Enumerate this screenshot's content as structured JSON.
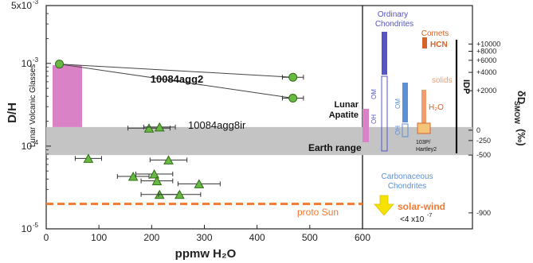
{
  "chart_data": {
    "type": "scatter",
    "xlabel": "ppmw H₂O",
    "ylabel": "D/H",
    "y2label": "δD",
    "y2label_sub": "SMOW",
    "y2label_unit": "(‰)",
    "xlim": [
      0,
      600
    ],
    "ylim": [
      1e-05,
      0.005
    ],
    "yscale": "log",
    "xticks": [
      "0",
      "100",
      "200",
      "300",
      "400",
      "500",
      "600"
    ],
    "yticks": [
      {
        "value": 1e-05,
        "label": "10",
        "exp": "-5"
      },
      {
        "value": 0.0001,
        "label": "10",
        "exp": "-4"
      },
      {
        "value": 0.001,
        "label": "10",
        "exp": "-3"
      },
      {
        "value": 0.005,
        "label": "5x10",
        "exp": "-3"
      }
    ],
    "delta_ticks": [
      {
        "value": 0.001713,
        "label": "+10000"
      },
      {
        "value": 0.001402,
        "label": "+8000"
      },
      {
        "value": 0.00109,
        "label": "+6000"
      },
      {
        "value": 0.000779,
        "label": "+4000"
      },
      {
        "value": 0.000467,
        "label": "+2000"
      },
      {
        "value": 0.0001558,
        "label": "0"
      },
      {
        "value": 0.0001168,
        "label": "-250"
      },
      {
        "value": 7.79e-05,
        "label": "-500"
      },
      {
        "value": 1.56e-05,
        "label": "-900"
      }
    ],
    "series": [
      {
        "name": "10084agg2",
        "marker": "circle",
        "color": "#6ab844",
        "points": [
          {
            "x": 25,
            "y": 0.00098
          },
          {
            "x": 468,
            "y": 0.00068,
            "xerr": 20
          },
          {
            "x": 468,
            "y": 0.00038,
            "xerr": 20
          }
        ]
      },
      {
        "name": "10084agg8ir",
        "marker": "triangle",
        "color": "#6ab844",
        "points": [
          {
            "x": 195,
            "y": 0.000165,
            "xerr": 40
          },
          {
            "x": 215,
            "y": 0.00017,
            "xerr": 30
          },
          {
            "x": 80,
            "y": 7.1e-05,
            "xerr": 25
          },
          {
            "x": 232,
            "y": 6.8e-05,
            "xerr": 35
          },
          {
            "x": 165,
            "y": 4.3e-05,
            "xerr": 30
          },
          {
            "x": 205,
            "y": 4.6e-05,
            "xerr": 35
          },
          {
            "x": 210,
            "y": 3.8e-05,
            "xerr": 30
          },
          {
            "x": 290,
            "y": 3.5e-05,
            "xerr": 40
          },
          {
            "x": 215,
            "y": 2.6e-05,
            "xerr": 35
          },
          {
            "x": 253,
            "y": 2.6e-05,
            "xerr": 40
          }
        ]
      }
    ],
    "regions": [
      {
        "label": "Earth range",
        "ymin": 7.79e-05,
        "ymax": 0.00017
      },
      {
        "label": "Lunar Volcanic Glasses",
        "xmin": 12,
        "xmax": 68,
        "ymin": 0.00017,
        "ymax": 0.00095
      }
    ],
    "reference_lines": [
      {
        "label": "proto Sun",
        "y": 2e-05
      }
    ],
    "point_labels": [
      "10084agg2",
      "10084agg8ir"
    ],
    "right_panel": {
      "ordinary_chondrites": "Ordinary Chondrites",
      "comets": "Comets",
      "hcn": "HCN",
      "solids": "solids",
      "h2o": "H₂O",
      "om": "OM",
      "oh": "OH",
      "carbonaceous_chondrites": "Carbonaceous Chondrites",
      "lunar_apatite": "Lunar Apatite",
      "comet_names": "103P/ Hartley2",
      "idp": "IDP",
      "solar_wind": "solar-wind",
      "solar_wind_value": "<4 x10",
      "solar_wind_exp": "-7"
    }
  },
  "colors": {
    "green_marker": "#6ab844",
    "pink": "#d983c6",
    "earth_band": "#c4c4c4",
    "proto_sun": "#f07a32",
    "ordinary": "#5555c8",
    "carbonaceous": "#5b8fd6",
    "comet": "#d6642a",
    "comet_light": "#ef9d6e",
    "hartley": "#f4c47a",
    "solar_wind": "#f5e200"
  }
}
